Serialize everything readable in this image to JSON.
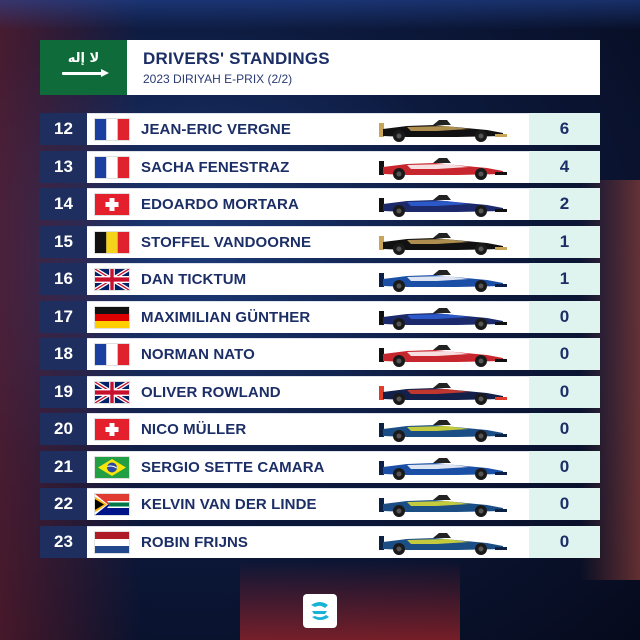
{
  "header": {
    "title": "DRIVERS' STANDINGS",
    "subtitle": "2023 DIRIYAH E-PRIX (2/2)",
    "flag_icon": "saudi-arabia-flag-icon"
  },
  "standings": [
    {
      "pos": "12",
      "name": "JEAN-ERIC VERGNE",
      "flag": "france",
      "team_livery": "ds-penske-black-gold",
      "points": "6"
    },
    {
      "pos": "13",
      "name": "SACHA FENESTRAZ",
      "flag": "france",
      "team_livery": "nissan-red",
      "points": "4"
    },
    {
      "pos": "14",
      "name": "EDOARDO MORTARA",
      "flag": "switzerland",
      "team_livery": "maserati-blue",
      "points": "2"
    },
    {
      "pos": "15",
      "name": "STOFFEL VANDOORNE",
      "flag": "belgium",
      "team_livery": "ds-penske-black-gold",
      "points": "1"
    },
    {
      "pos": "16",
      "name": "DAN TICKTUM",
      "flag": "united-kingdom",
      "team_livery": "nio-blue",
      "points": "1"
    },
    {
      "pos": "17",
      "name": "MAXIMILIAN GÜNTHER",
      "flag": "germany",
      "team_livery": "maserati-blue",
      "points": "0"
    },
    {
      "pos": "18",
      "name": "NORMAN NATO",
      "flag": "france",
      "team_livery": "nissan-red",
      "points": "0"
    },
    {
      "pos": "19",
      "name": "OLIVER ROWLAND",
      "flag": "united-kingdom",
      "team_livery": "mahindra-red-bull",
      "points": "0"
    },
    {
      "pos": "20",
      "name": "NICO MÜLLER",
      "flag": "switzerland",
      "team_livery": "abt-cupra-blue-yellow",
      "points": "0"
    },
    {
      "pos": "21",
      "name": "SERGIO SETTE CAMARA",
      "flag": "brazil",
      "team_livery": "nio-blue",
      "points": "0"
    },
    {
      "pos": "22",
      "name": "KELVIN VAN DER LINDE",
      "flag": "south-africa",
      "team_livery": "abt-cupra-blue-yellow",
      "points": "0"
    },
    {
      "pos": "23",
      "name": "ROBIN FRIJNS",
      "flag": "netherlands",
      "team_livery": "abt-cupra-blue-yellow",
      "points": "0"
    }
  ],
  "colors": {
    "position_bg": "#1e2e5e",
    "points_bg": "#dff3ef",
    "text_navy": "#1c2e66",
    "saudi_green": "#0f6b39"
  },
  "footer": {
    "logo_icon": "formula-e-logo-icon"
  }
}
